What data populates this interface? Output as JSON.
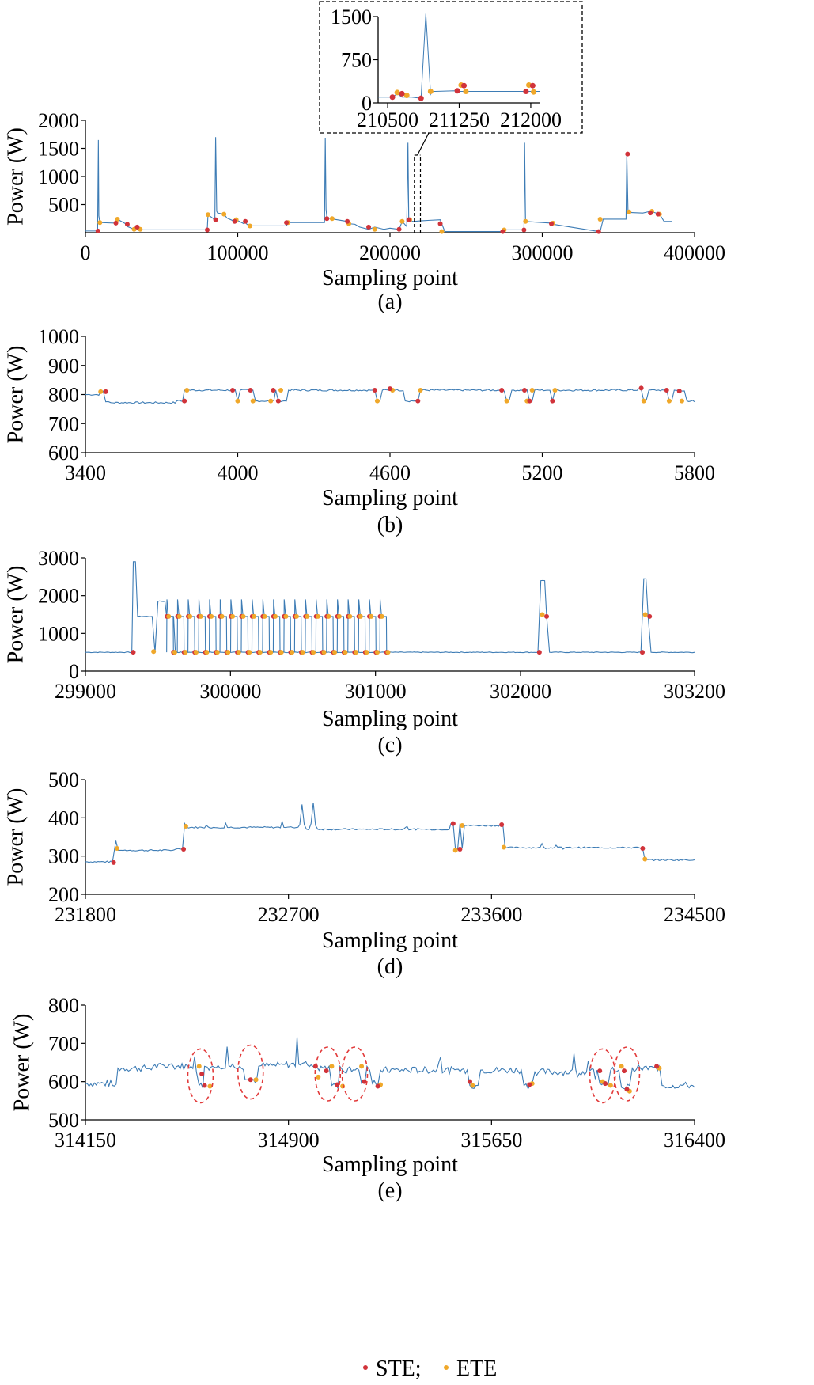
{
  "colors": {
    "signal": "#3d7cb5",
    "ste": "#d1333a",
    "ete": "#f0a82a",
    "highlight": "#e23a3a"
  },
  "legend": {
    "ste": "STE;",
    "ete": "ETE"
  },
  "chart_data": [
    {
      "id": "a",
      "type": "line",
      "caption": "(a)",
      "xlabel": "Sampling point",
      "ylabel": "Power (W)",
      "xlim": [
        0,
        400000
      ],
      "ylim": [
        0,
        2000
      ],
      "xticks": [
        0,
        100000,
        200000,
        300000,
        400000
      ],
      "yticks": [
        500,
        1000,
        1500,
        2000
      ],
      "series": [
        {
          "x": [
            0,
            8000,
            8500,
            8800,
            9500,
            20000,
            21000,
            27000,
            27500,
            32000,
            33000,
            34000,
            36000,
            80000,
            80500,
            85000,
            85500,
            86200,
            86800,
            91000,
            93000,
            98000,
            99000,
            104000,
            105000,
            106000,
            108000,
            132000,
            133000,
            157000,
            157500,
            158000,
            158600,
            162000,
            163000,
            172000,
            173000,
            177000,
            180000,
            186000,
            190000,
            196000,
            200000,
            206000,
            208000,
            211000,
            211800,
            212300,
            213000,
            215000,
            220000,
            226000,
            233000,
            234000,
            236000,
            274000,
            275000,
            288000,
            288400,
            289000,
            300000,
            306000,
            307000,
            337000,
            338000,
            340000,
            355000,
            355500,
            356300,
            357000,
            366000,
            371000,
            376000,
            377000,
            380000,
            385000
          ],
          "y": [
            30,
            30,
            1650,
            300,
            180,
            170,
            240,
            150,
            110,
            60,
            100,
            60,
            50,
            50,
            320,
            230,
            1700,
            380,
            350,
            330,
            260,
            200,
            230,
            160,
            200,
            150,
            120,
            120,
            180,
            180,
            1690,
            420,
            260,
            250,
            240,
            200,
            160,
            150,
            100,
            60,
            100,
            60,
            80,
            60,
            200,
            110,
            1600,
            270,
            230,
            200,
            210,
            220,
            230,
            160,
            20,
            20,
            50,
            50,
            1600,
            200,
            180,
            170,
            150,
            20,
            20,
            240,
            240,
            1400,
            370,
            360,
            350,
            380,
            340,
            330,
            200,
            200
          ]
        }
      ],
      "ste": [
        [
          8200,
          30
        ],
        [
          20000,
          170
        ],
        [
          27500,
          150
        ],
        [
          34000,
          100
        ],
        [
          80000,
          50
        ],
        [
          85500,
          230
        ],
        [
          98000,
          200
        ],
        [
          105000,
          200
        ],
        [
          132000,
          180
        ],
        [
          158600,
          250
        ],
        [
          172000,
          200
        ],
        [
          186000,
          100
        ],
        [
          206000,
          60
        ],
        [
          212300,
          230
        ],
        [
          233000,
          160
        ],
        [
          274000,
          20
        ],
        [
          288000,
          50
        ],
        [
          306000,
          160
        ],
        [
          337000,
          20
        ],
        [
          356000,
          1400
        ],
        [
          371000,
          350
        ],
        [
          376000,
          330
        ]
      ],
      "ete": [
        [
          9500,
          180
        ],
        [
          21000,
          240
        ],
        [
          32000,
          60
        ],
        [
          36000,
          60
        ],
        [
          80500,
          320
        ],
        [
          91000,
          330
        ],
        [
          99000,
          230
        ],
        [
          108000,
          120
        ],
        [
          133000,
          180
        ],
        [
          162000,
          250
        ],
        [
          173000,
          160
        ],
        [
          190000,
          60
        ],
        [
          208000,
          200
        ],
        [
          213000,
          230
        ],
        [
          234000,
          20
        ],
        [
          275000,
          50
        ],
        [
          289000,
          200
        ],
        [
          307000,
          170
        ],
        [
          338000,
          240
        ],
        [
          357000,
          370
        ],
        [
          372000,
          380
        ],
        [
          377000,
          330
        ]
      ]
    },
    {
      "id": "inset",
      "type": "line",
      "caption": "",
      "xlim": [
        210400,
        212100
      ],
      "ylim": [
        0,
        1500
      ],
      "xticks": [
        210500,
        211250,
        212000
      ],
      "yticks": [
        0,
        750,
        1500
      ],
      "series": [
        {
          "x": [
            210400,
            210550,
            210600,
            210650,
            210750,
            210850,
            210900,
            210950,
            210965,
            211000,
            211200,
            211250,
            211700,
            212000,
            212100
          ],
          "y": [
            100,
            100,
            160,
            100,
            100,
            80,
            1550,
            150,
            200,
            200,
            210,
            200,
            200,
            200,
            200
          ]
        }
      ],
      "ste": [
        [
          210550,
          100
        ],
        [
          210650,
          160
        ],
        [
          210850,
          80
        ],
        [
          211230,
          210
        ],
        [
          211300,
          300
        ],
        [
          211950,
          200
        ],
        [
          212020,
          300
        ]
      ],
      "ete": [
        [
          210600,
          180
        ],
        [
          210700,
          130
        ],
        [
          210950,
          200
        ],
        [
          211270,
          310
        ],
        [
          211320,
          200
        ],
        [
          211980,
          310
        ],
        [
          212030,
          190
        ]
      ]
    },
    {
      "id": "b",
      "type": "line",
      "caption": "(b)",
      "xlabel": "Sampling point",
      "ylabel": "Power (W)",
      "xlim": [
        3400,
        5800
      ],
      "ylim": [
        600,
        1000
      ],
      "xticks": [
        3400,
        4000,
        4600,
        5200,
        5800
      ],
      "yticks": [
        600,
        700,
        800,
        900,
        1000
      ],
      "series": [
        {
          "x": [
            3400,
            3460,
            3480,
            3500,
            3760,
            3790,
            3800,
            3980,
            4000,
            4010,
            4060,
            4070,
            4150,
            4160,
            4200,
            4530,
            4550,
            4570,
            4620,
            4660,
            4700,
            4720,
            5040,
            5060,
            5080,
            5130,
            5150,
            5170,
            5220,
            5240,
            5250,
            5580,
            5600,
            5620,
            5680,
            5700,
            5720,
            5750,
            5770,
            5800
          ],
          "y": [
            800,
            810,
            775,
            772,
            778,
            815,
            815,
            815,
            778,
            815,
            815,
            778,
            815,
            778,
            815,
            815,
            778,
            815,
            815,
            778,
            778,
            815,
            815,
            778,
            815,
            815,
            778,
            815,
            815,
            778,
            815,
            820,
            778,
            815,
            815,
            778,
            815,
            812,
            778,
            775
          ]
        }
      ],
      "ste": [
        [
          3480,
          810
        ],
        [
          3790,
          778
        ],
        [
          3980,
          815
        ],
        [
          4050,
          815
        ],
        [
          4140,
          815
        ],
        [
          4160,
          778
        ],
        [
          4540,
          815
        ],
        [
          4600,
          820
        ],
        [
          4710,
          778
        ],
        [
          5040,
          815
        ],
        [
          5130,
          815
        ],
        [
          5150,
          778
        ],
        [
          5240,
          778
        ],
        [
          5590,
          822
        ],
        [
          5690,
          815
        ],
        [
          5740,
          812
        ]
      ],
      "ete": [
        [
          3460,
          810
        ],
        [
          3800,
          815
        ],
        [
          4000,
          778
        ],
        [
          4060,
          778
        ],
        [
          4130,
          778
        ],
        [
          4170,
          815
        ],
        [
          4550,
          778
        ],
        [
          4610,
          815
        ],
        [
          4720,
          815
        ],
        [
          5060,
          778
        ],
        [
          5140,
          778
        ],
        [
          5160,
          815
        ],
        [
          5250,
          815
        ],
        [
          5600,
          778
        ],
        [
          5700,
          778
        ],
        [
          5750,
          778
        ]
      ]
    },
    {
      "id": "c",
      "type": "line",
      "caption": "(c)",
      "xlabel": "Sampling point",
      "ylabel": "Power (W)",
      "xlim": [
        299000,
        303200
      ],
      "ylim": [
        0,
        3000
      ],
      "xticks": [
        299000,
        300000,
        301000,
        302000,
        303200
      ],
      "yticks": [
        0,
        1000,
        2000,
        3000
      ],
      "series": [
        {
          "x": [
            299000,
            299320,
            299330,
            299360,
            299460,
            299480,
            299500,
            299560,
            299620,
            302120,
            302140,
            302180,
            302200,
            302830,
            302850,
            302880,
            302900,
            303200
          ],
          "y": [
            500,
            500,
            2900,
            1450,
            1450,
            500,
            1850,
            1450,
            500,
            500,
            2400,
            1450,
            500,
            500,
            2450,
            1450,
            500,
            500
          ]
        }
      ],
      "pulses": {
        "start": 299560,
        "step": 73.5,
        "count": 21,
        "peak": 1900,
        "plateau": 1450,
        "base": 500
      },
      "ste": [
        [
          299330,
          500
        ],
        [
          302130,
          500
        ],
        [
          302180,
          1450
        ],
        [
          302840,
          500
        ],
        [
          302890,
          1450
        ]
      ],
      "ete": [
        [
          299470,
          520
        ],
        [
          302150,
          1500
        ],
        [
          302860,
          1500
        ]
      ]
    },
    {
      "id": "d",
      "type": "line",
      "caption": "(d)",
      "xlabel": "Sampling point",
      "ylabel": "Power (W)",
      "xlim": [
        231800,
        234500
      ],
      "ylim": [
        200,
        500
      ],
      "xticks": [
        231800,
        232700,
        233600,
        234500
      ],
      "yticks": [
        200,
        300,
        400,
        500
      ],
      "series": [
        {
          "x": [
            231800,
            231920,
            231935,
            231945,
            231960,
            232200,
            232230,
            232240,
            232250,
            232750,
            232760,
            232770,
            232780,
            232800,
            232810,
            232820,
            232830,
            233420,
            233430,
            233440,
            233450,
            233460,
            233470,
            233480,
            233640,
            233650,
            233660,
            234260,
            234270,
            234280,
            234500
          ],
          "y": [
            285,
            285,
            340,
            315,
            315,
            318,
            318,
            385,
            375,
            382,
            435,
            382,
            370,
            385,
            440,
            380,
            370,
            385,
            385,
            318,
            318,
            385,
            320,
            380,
            385,
            385,
            322,
            320,
            320,
            290,
            290
          ]
        }
      ],
      "ste": [
        [
          231925,
          283
        ],
        [
          232235,
          318
        ],
        [
          233430,
          385
        ],
        [
          233460,
          318
        ],
        [
          233645,
          382
        ],
        [
          234270,
          320
        ]
      ],
      "ete": [
        [
          231940,
          320
        ],
        [
          232245,
          378
        ],
        [
          233440,
          315
        ],
        [
          233470,
          380
        ],
        [
          233655,
          323
        ],
        [
          234280,
          292
        ]
      ]
    },
    {
      "id": "e",
      "type": "line",
      "caption": "(e)",
      "xlabel": "Sampling point",
      "ylabel": "Power (W)",
      "xlim": [
        314150,
        316400
      ],
      "ylim": [
        500,
        800
      ],
      "xticks": [
        314150,
        314900,
        315650,
        316400
      ],
      "yticks": [
        500,
        600,
        700,
        800
      ],
      "series": [
        {
          "x": [
            314150,
            314250,
            314270,
            314400,
            314540,
            314560,
            314570,
            314590,
            314600,
            314620,
            314640,
            314720,
            314740,
            314750,
            314790,
            314800,
            314880,
            314990,
            315000,
            315020,
            315050,
            315060,
            315090,
            315100,
            315120,
            315160,
            315170,
            315190,
            315200,
            315210,
            315230,
            315240,
            315560,
            315570,
            315600,
            315610,
            315760,
            315770,
            315800,
            315810,
            316040,
            316050,
            316080,
            316090,
            316120,
            316130,
            316160,
            316170,
            316200,
            316270,
            316280,
            316400
          ],
          "y": [
            595,
            590,
            635,
            640,
            640,
            625,
            590,
            640,
            638,
            640,
            642,
            640,
            605,
            605,
            640,
            642,
            645,
            640,
            635,
            640,
            640,
            590,
            640,
            630,
            635,
            630,
            595,
            640,
            630,
            595,
            590,
            630,
            630,
            590,
            590,
            630,
            630,
            590,
            595,
            625,
            630,
            595,
            590,
            630,
            630,
            585,
            590,
            635,
            635,
            640,
            590,
            585
          ]
        }
      ],
      "ste": [
        [
          314580,
          620
        ],
        [
          314590,
          590
        ],
        [
          314760,
          605
        ],
        [
          315000,
          640
        ],
        [
          315040,
          628
        ],
        [
          315080,
          592
        ],
        [
          315180,
          600
        ],
        [
          315230,
          588
        ],
        [
          315570,
          600
        ],
        [
          315790,
          592
        ],
        [
          316050,
          628
        ],
        [
          316070,
          595
        ],
        [
          316140,
          628
        ],
        [
          316150,
          580
        ],
        [
          316260,
          640
        ]
      ],
      "ete": [
        [
          314570,
          640
        ],
        [
          314610,
          588
        ],
        [
          314780,
          605
        ],
        [
          315010,
          612
        ],
        [
          315060,
          640
        ],
        [
          315100,
          588
        ],
        [
          315170,
          640
        ],
        [
          315240,
          592
        ],
        [
          315580,
          590
        ],
        [
          315800,
          595
        ],
        [
          316060,
          600
        ],
        [
          316090,
          590
        ],
        [
          316130,
          640
        ],
        [
          316160,
          575
        ],
        [
          316270,
          635
        ]
      ],
      "highlights": [
        [
          314575,
          615
        ],
        [
          314760,
          625
        ],
        [
          315045,
          620
        ],
        [
          315145,
          620
        ],
        [
          316060,
          615
        ],
        [
          316150,
          620
        ]
      ]
    }
  ]
}
